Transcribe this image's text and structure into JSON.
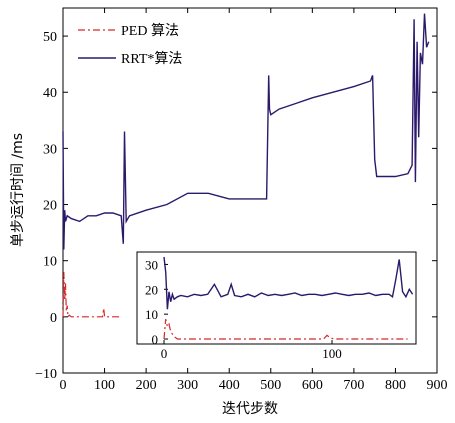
{
  "chart_data": [
    {
      "type": "line",
      "title": "",
      "xlabel": "迭代步数",
      "ylabel": "单步运行时间 /ms",
      "xlim": [
        0,
        900
      ],
      "ylim": [
        -10,
        55
      ],
      "xticks": [
        "0",
        "100",
        "200",
        "300",
        "400",
        "500",
        "600",
        "700",
        "800",
        "900"
      ],
      "yticks": [
        "−10",
        "0",
        "10",
        "20",
        "30",
        "40",
        "50"
      ],
      "legend_position": "top-left",
      "series": [
        {
          "name": "PED 算法",
          "color": "#d62728",
          "style": "dash-dot",
          "x": [
            0,
            2,
            4,
            6,
            8,
            10,
            12,
            15,
            20,
            30,
            50,
            80,
            95,
            98,
            100,
            105,
            120,
            135
          ],
          "y": [
            0,
            8,
            3,
            6,
            1,
            2,
            0,
            0.3,
            0,
            0,
            0,
            0,
            0,
            1.5,
            0,
            0,
            0,
            0
          ]
        },
        {
          "name": "RRT*算法",
          "color": "#2b1a6b",
          "style": "solid",
          "x": [
            0,
            2,
            4,
            6,
            10,
            20,
            40,
            60,
            80,
            100,
            120,
            140,
            145,
            148,
            152,
            160,
            200,
            250,
            300,
            350,
            400,
            450,
            490,
            495,
            497,
            500,
            520,
            560,
            600,
            650,
            700,
            740,
            745,
            750,
            755,
            780,
            800,
            830,
            840,
            845,
            848,
            852,
            856,
            860,
            865,
            870,
            875,
            880
          ],
          "y": [
            33,
            12,
            19,
            17,
            18,
            17.5,
            17,
            18,
            18,
            18.5,
            18.5,
            18,
            13,
            33,
            17,
            18,
            19,
            20,
            22,
            22,
            21,
            21,
            21,
            43,
            37,
            36,
            37,
            38,
            39,
            40,
            41,
            42,
            43,
            28,
            25,
            25,
            25,
            25.5,
            27,
            53,
            24,
            49,
            32,
            47,
            45,
            54,
            48,
            49
          ]
        }
      ]
    },
    {
      "type": "line",
      "title": "",
      "xlabel": "",
      "ylabel": "",
      "xlim": [
        0,
        150
      ],
      "ylim": [
        -2,
        35
      ],
      "xticks": [
        "0",
        "100"
      ],
      "yticks": [
        "0",
        "10",
        "20",
        "30"
      ],
      "series": [
        {
          "name": "PED 算法",
          "color": "#d62728",
          "style": "dash-dot",
          "x": [
            0,
            1,
            2,
            3,
            4,
            5,
            6,
            8,
            10,
            20,
            40,
            60,
            80,
            95,
            97,
            99,
            101,
            110,
            130,
            145
          ],
          "y": [
            0,
            8,
            5,
            6,
            3,
            2,
            1,
            0,
            0,
            0,
            0,
            0,
            0,
            0,
            1.5,
            0.5,
            0,
            0,
            0,
            0
          ]
        },
        {
          "name": "RRT*算法",
          "color": "#2b1a6b",
          "style": "solid",
          "x": [
            0,
            1,
            2,
            3,
            4,
            5,
            6,
            8,
            10,
            14,
            18,
            22,
            26,
            30,
            34,
            38,
            40,
            42,
            46,
            50,
            54,
            58,
            62,
            66,
            70,
            74,
            78,
            82,
            86,
            90,
            94,
            98,
            102,
            106,
            110,
            114,
            118,
            122,
            126,
            130,
            134,
            136,
            138,
            140,
            142,
            144,
            146,
            148
          ],
          "y": [
            33,
            27,
            12,
            19,
            15,
            18,
            16,
            17,
            17.5,
            17,
            18,
            17.5,
            18,
            22,
            17,
            18,
            22,
            17.5,
            17,
            18,
            17,
            18.5,
            17.5,
            18,
            17.5,
            18,
            18.5,
            17.5,
            18,
            18,
            17.5,
            18,
            18.5,
            18,
            17.5,
            18,
            18,
            18.5,
            17.5,
            18,
            18,
            17,
            24,
            32,
            19,
            17,
            20,
            18
          ]
        }
      ]
    }
  ]
}
